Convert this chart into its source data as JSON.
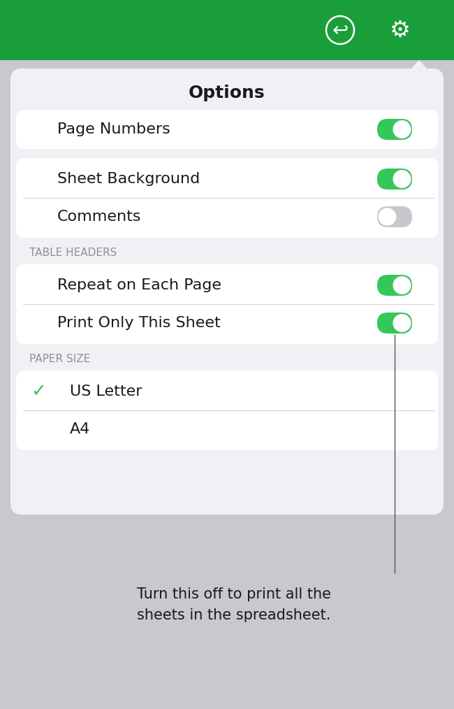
{
  "header_color": "#1a9e3a",
  "bg_color": "#c8c8cd",
  "panel_bg": "#f0f0f5",
  "card_bg": "#ffffff",
  "title": "Options",
  "section_label_color": "#8e8e93",
  "toggle_green": "#34c759",
  "toggle_gray": "#c7c7cc",
  "toggle_knob": "#ffffff",
  "green_check": "#34c759",
  "callout_text": "Turn this off to print all the\nsheets in the spreadsheet.",
  "callout_color": "#1a1a1a",
  "icon_color": "#ffffff",
  "section2_label": "TABLE HEADERS",
  "section3_label": "PAPER SIZE",
  "figw": 6.5,
  "figh": 10.14,
  "dpi": 100
}
